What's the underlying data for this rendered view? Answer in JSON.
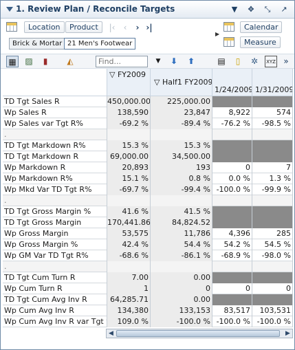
{
  "window": {
    "title": "1. Review Plan / Reconcile Targets"
  },
  "titlebar_icons": [
    "dropdown-icon",
    "move-icon",
    "resize-icon",
    "maximize-icon"
  ],
  "dimensions": {
    "location_label": "Location",
    "product_label": "Product",
    "calendar_label": "Calendar",
    "measure_label": "Measure",
    "chips": [
      "Brick & Mortar",
      "21 Men's Footwear"
    ]
  },
  "toolbar": {
    "find_placeholder": "Find..."
  },
  "columns": {
    "col1": "FY2009",
    "col2": "Half1 FY2009",
    "col3": "1/24/2009",
    "col4": "1/31/2009",
    "col1_prefix": "▽",
    "col2_prefix": "▽"
  },
  "rows": [
    {
      "label": "TD Tgt Sales R",
      "v": [
        "450,000.00",
        "225,000.00",
        "",
        ""
      ],
      "dark": [
        false,
        false,
        true,
        true
      ],
      "alt": false
    },
    {
      "label": "Wp Sales R",
      "v": [
        "138,590",
        "23,847",
        "8,922",
        "574"
      ],
      "dark": [
        false,
        false,
        false,
        false
      ],
      "alt": false
    },
    {
      "label": "Wp Sales var Tgt R%",
      "v": [
        "-69.2 %",
        "-89.4 %",
        "-76.2 %",
        "-98.5 %"
      ],
      "dark": [
        false,
        false,
        false,
        false
      ],
      "alt": false
    },
    {
      "label": ".",
      "v": [
        "",
        "",
        "",
        ""
      ],
      "dark": [
        false,
        false,
        false,
        false
      ],
      "alt": true,
      "sep": true
    },
    {
      "label": "TD Tgt Markdown R%",
      "v": [
        "15.3 %",
        "15.3 %",
        "",
        ""
      ],
      "dark": [
        false,
        false,
        true,
        true
      ],
      "alt": false
    },
    {
      "label": "TD Tgt Markdown R",
      "v": [
        "69,000.00",
        "34,500.00",
        "",
        ""
      ],
      "dark": [
        false,
        false,
        true,
        true
      ],
      "alt": false
    },
    {
      "label": "Wp Markdown R",
      "v": [
        "20,893",
        "193",
        "0",
        "7"
      ],
      "dark": [
        false,
        false,
        false,
        false
      ],
      "alt": false
    },
    {
      "label": "Wp Markdown R%",
      "v": [
        "15.1 %",
        "0.8 %",
        "0.0 %",
        "1.3 %"
      ],
      "dark": [
        false,
        false,
        false,
        false
      ],
      "alt": false
    },
    {
      "label": "Wp Mkd Var TD Tgt R%",
      "v": [
        "-69.7 %",
        "-99.4 %",
        "-100.0 %",
        "-99.9 %"
      ],
      "dark": [
        false,
        false,
        false,
        false
      ],
      "alt": false
    },
    {
      "label": ".",
      "v": [
        "",
        "",
        "",
        ""
      ],
      "dark": [
        false,
        false,
        false,
        false
      ],
      "alt": true,
      "sep": true
    },
    {
      "label": "TD Tgt Gross Margin %",
      "v": [
        "41.6 %",
        "41.5 %",
        "",
        ""
      ],
      "dark": [
        false,
        false,
        true,
        true
      ],
      "alt": false
    },
    {
      "label": "TD Tgt Gross Margin",
      "v": [
        "170,441.86",
        "84,824.52",
        "",
        ""
      ],
      "dark": [
        false,
        false,
        true,
        true
      ],
      "alt": false
    },
    {
      "label": "Wp Gross Margin",
      "v": [
        "53,575",
        "11,786",
        "4,396",
        "285"
      ],
      "dark": [
        false,
        false,
        false,
        false
      ],
      "alt": false
    },
    {
      "label": "Wp Gross Margin %",
      "v": [
        "42.4 %",
        "54.4 %",
        "54.2 %",
        "54.5 %"
      ],
      "dark": [
        false,
        false,
        false,
        false
      ],
      "alt": false
    },
    {
      "label": "Wp GM Var TD Tgt R%",
      "v": [
        "-68.6 %",
        "-86.1 %",
        "-68.9 %",
        "-98.0 %"
      ],
      "dark": [
        false,
        false,
        false,
        false
      ],
      "alt": false
    },
    {
      "label": ".",
      "v": [
        "",
        "",
        "",
        ""
      ],
      "dark": [
        false,
        false,
        false,
        false
      ],
      "alt": true,
      "sep": true
    },
    {
      "label": "TD Tgt Cum Turn R",
      "v": [
        "7.00",
        "0.00",
        "",
        ""
      ],
      "dark": [
        false,
        false,
        true,
        true
      ],
      "alt": false
    },
    {
      "label": "Wp Cum Turn R",
      "v": [
        "1",
        "0",
        "0",
        "0"
      ],
      "dark": [
        false,
        false,
        false,
        false
      ],
      "alt": false
    },
    {
      "label": "TD Tgt Cum Avg Inv R",
      "v": [
        "64,285.71",
        "0.00",
        "",
        ""
      ],
      "dark": [
        false,
        false,
        true,
        true
      ],
      "alt": false
    },
    {
      "label": "Wp Cum Avg Inv R",
      "v": [
        "134,380",
        "133,153",
        "83,517",
        "103,531"
      ],
      "dark": [
        false,
        false,
        false,
        false
      ],
      "alt": false
    },
    {
      "label": "Wp Cum Avg Inv R var Tgt %",
      "v": [
        "109.0 %",
        "-100.0 %",
        "-100.0 %",
        "-100.0 %"
      ],
      "dark": [
        false,
        false,
        false,
        false
      ],
      "alt": false
    }
  ]
}
